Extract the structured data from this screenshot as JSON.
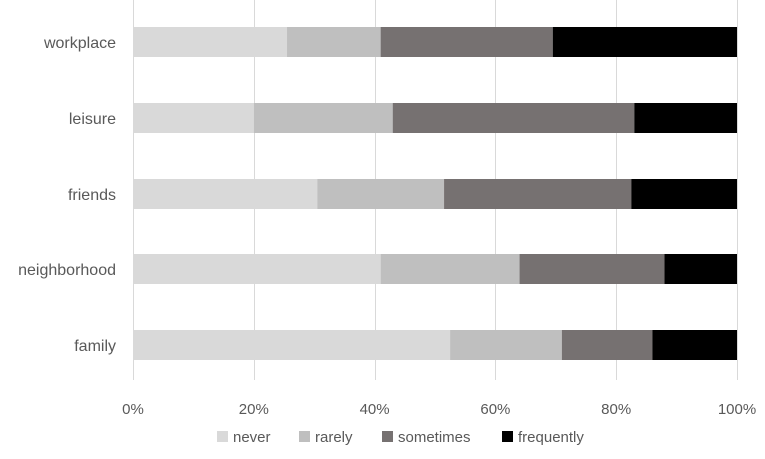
{
  "chart_data": {
    "type": "bar",
    "orientation": "horizontal",
    "stacked": "percent",
    "title": "",
    "xlabel": "",
    "ylabel": "",
    "categories": [
      "workplace",
      "leisure",
      "friends",
      "neighborhood",
      "family"
    ],
    "series": [
      {
        "name": "never",
        "values": [
          25.5,
          20,
          30.5,
          41,
          52.5
        ],
        "color": "#d9d9d9"
      },
      {
        "name": "rarely",
        "values": [
          15.5,
          23,
          21,
          23,
          18.5
        ],
        "color": "#bfbfbf"
      },
      {
        "name": "sometimes",
        "values": [
          28.5,
          40,
          31,
          24,
          15
        ],
        "color": "#767171"
      },
      {
        "name": "frequently",
        "values": [
          30.5,
          17,
          17.5,
          12,
          14
        ],
        "color": "#000000"
      }
    ],
    "xlim": [
      0,
      100
    ],
    "xticks": [
      "0%",
      "20%",
      "40%",
      "60%",
      "80%",
      "100%"
    ],
    "xtick_values": [
      0,
      20,
      40,
      60,
      80,
      100
    ],
    "grid": "vertical",
    "legend_position": "bottom"
  }
}
